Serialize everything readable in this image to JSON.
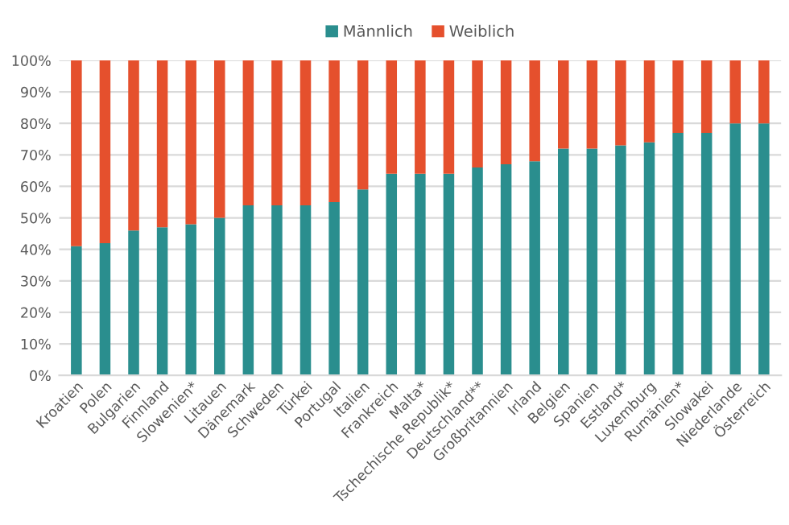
{
  "chart_data": {
    "type": "bar",
    "stacked": true,
    "legend": "top",
    "grid": "y",
    "categories": [
      "Kroatien",
      "Polen",
      "Bulgarien",
      "Finnland",
      "Slowenien*",
      "Litauen",
      "Dänemark",
      "Schweden",
      "Türkei",
      "Portugal",
      "Italien",
      "Frankreich",
      "Malta*",
      "Tschechische Republik*",
      "Deutschland**",
      "Großbritannien",
      "Irland",
      "Belgien",
      "Spanien",
      "Estland*",
      "Luxemburg",
      "Rumänien*",
      "Slowakei",
      "Niederlande",
      "Österreich"
    ],
    "series": [
      {
        "name": "Männlich",
        "color": "#2a8e8e",
        "values": [
          41,
          42,
          46,
          47,
          48,
          50,
          54,
          54,
          54,
          55,
          59,
          64,
          64,
          64,
          66,
          67,
          68,
          72,
          72,
          73,
          74,
          77,
          77,
          80,
          80
        ]
      },
      {
        "name": "Weiblich",
        "color": "#e5502d",
        "values": [
          59,
          58,
          54,
          53,
          52,
          50,
          46,
          46,
          46,
          45,
          41,
          36,
          36,
          36,
          34,
          33,
          32,
          28,
          28,
          27,
          26,
          23,
          23,
          20,
          20
        ]
      }
    ],
    "ylim": [
      0,
      100
    ],
    "yticks": [
      {
        "value": 0,
        "label": "0%"
      },
      {
        "value": 10,
        "label": "10%"
      },
      {
        "value": 20,
        "label": "20%"
      },
      {
        "value": 30,
        "label": "30%"
      },
      {
        "value": 40,
        "label": "40%"
      },
      {
        "value": 50,
        "label": "50%"
      },
      {
        "value": 60,
        "label": "60%"
      },
      {
        "value": 70,
        "label": "70%"
      },
      {
        "value": 80,
        "label": "80%"
      },
      {
        "value": 90,
        "label": "90%"
      },
      {
        "value": 100,
        "label": "100%"
      }
    ]
  }
}
